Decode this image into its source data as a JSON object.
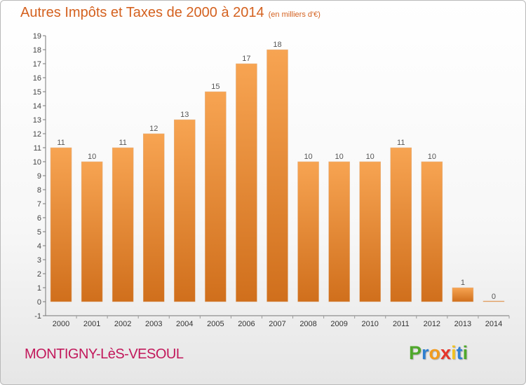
{
  "title": "Autres Impôts et Taxes de 2000 à 2014",
  "unit": "(en milliers d'€)",
  "commune": "MONTIGNY-LèS-VESOUL",
  "logo": "Proxiti",
  "colors": {
    "bar_light": "#f7a452",
    "bar_dark": "#d06f1c",
    "title": "#d4611f",
    "commune": "#c2185b"
  },
  "chart_data": {
    "type": "bar",
    "categories": [
      "2000",
      "2001",
      "2002",
      "2003",
      "2004",
      "2005",
      "2006",
      "2007",
      "2008",
      "2009",
      "2010",
      "2011",
      "2012",
      "2013",
      "2014"
    ],
    "values": [
      11,
      10,
      11,
      12,
      13,
      15,
      17,
      18,
      10,
      10,
      10,
      11,
      10,
      1,
      0
    ],
    "ylim": [
      -1,
      19
    ],
    "yticks": [
      -1,
      0,
      1,
      2,
      3,
      4,
      5,
      6,
      7,
      8,
      9,
      10,
      11,
      12,
      13,
      14,
      15,
      16,
      17,
      18,
      19
    ],
    "title": "Autres Impôts et Taxes de 2000 à 2014",
    "xlabel": "",
    "ylabel": "",
    "grid": false
  }
}
